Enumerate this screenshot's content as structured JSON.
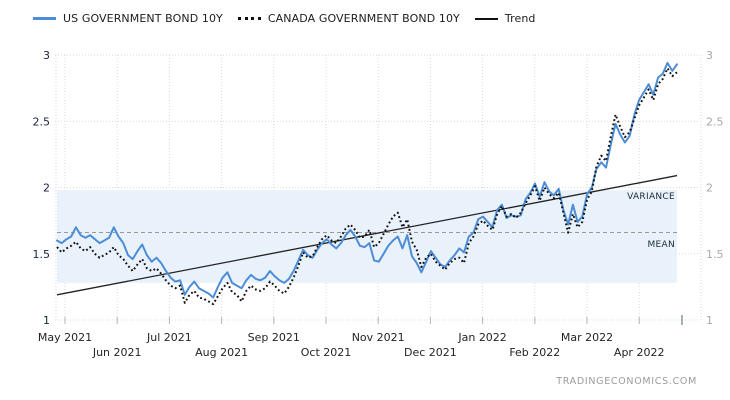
{
  "page": {
    "watermark": "TRADINGECONOMICS.COM"
  },
  "legend": {
    "items": [
      {
        "label": "US GOVERNMENT BOND 10Y",
        "swatch": "solid-line",
        "color": "#4c8dd6"
      },
      {
        "label": "CANADA GOVERNMENT BOND 10Y",
        "swatch": "dotted-line",
        "color": "#111111"
      },
      {
        "label": "Trend",
        "swatch": "solid-line",
        "color": "#111111"
      }
    ]
  },
  "chart_data": {
    "type": "line",
    "x_axis": {
      "months": [
        "May 2021",
        "Jun 2021",
        "Jul 2021",
        "Aug 2021",
        "Sep 2021",
        "Oct 2021",
        "Nov 2021",
        "Dec 2021",
        "Jan 2022",
        "Feb 2022",
        "Mar 2022",
        "Apr 2022"
      ]
    },
    "y_axis": {
      "ticks": [
        1,
        1.5,
        2,
        2.5,
        3
      ],
      "range": [
        1,
        3
      ],
      "left_label_color": "#16233c",
      "right_label_color": "#a8a8a8"
    },
    "grid": true,
    "legend_position": "top",
    "series": [
      {
        "name": "US GOVERNMENT BOND 10Y",
        "style": "solid",
        "color": "#4c8dd6",
        "values": [
          1.6,
          1.58,
          1.61,
          1.63,
          1.7,
          1.64,
          1.62,
          1.64,
          1.61,
          1.58,
          1.6,
          1.62,
          1.7,
          1.63,
          1.58,
          1.49,
          1.46,
          1.52,
          1.57,
          1.49,
          1.44,
          1.47,
          1.43,
          1.37,
          1.32,
          1.29,
          1.3,
          1.19,
          1.25,
          1.29,
          1.24,
          1.22,
          1.2,
          1.17,
          1.25,
          1.32,
          1.36,
          1.28,
          1.26,
          1.24,
          1.3,
          1.34,
          1.31,
          1.3,
          1.32,
          1.37,
          1.33,
          1.3,
          1.28,
          1.31,
          1.37,
          1.45,
          1.53,
          1.49,
          1.47,
          1.53,
          1.58,
          1.61,
          1.57,
          1.54,
          1.58,
          1.64,
          1.68,
          1.63,
          1.56,
          1.55,
          1.58,
          1.45,
          1.44,
          1.5,
          1.56,
          1.6,
          1.63,
          1.54,
          1.64,
          1.48,
          1.43,
          1.36,
          1.44,
          1.52,
          1.47,
          1.42,
          1.4,
          1.45,
          1.49,
          1.54,
          1.51,
          1.63,
          1.66,
          1.76,
          1.78,
          1.74,
          1.7,
          1.83,
          1.87,
          1.77,
          1.79,
          1.78,
          1.79,
          1.91,
          1.96,
          2.03,
          1.93,
          2.04,
          1.97,
          1.94,
          1.99,
          1.83,
          1.72,
          1.87,
          1.74,
          1.78,
          1.95,
          2.0,
          2.14,
          2.19,
          2.15,
          2.32,
          2.48,
          2.4,
          2.34,
          2.39,
          2.55,
          2.66,
          2.72,
          2.78,
          2.7,
          2.83,
          2.86,
          2.94,
          2.88,
          2.93
        ]
      },
      {
        "name": "CANADA GOVERNMENT BOND 10Y",
        "style": "dotted",
        "color": "#111111",
        "values": [
          1.55,
          1.51,
          1.54,
          1.56,
          1.59,
          1.54,
          1.52,
          1.55,
          1.5,
          1.47,
          1.49,
          1.51,
          1.55,
          1.49,
          1.46,
          1.41,
          1.37,
          1.42,
          1.46,
          1.39,
          1.37,
          1.39,
          1.35,
          1.3,
          1.26,
          1.24,
          1.26,
          1.13,
          1.19,
          1.22,
          1.17,
          1.16,
          1.14,
          1.12,
          1.18,
          1.24,
          1.28,
          1.21,
          1.19,
          1.14,
          1.22,
          1.26,
          1.23,
          1.22,
          1.24,
          1.29,
          1.26,
          1.22,
          1.2,
          1.25,
          1.32,
          1.41,
          1.51,
          1.47,
          1.48,
          1.55,
          1.61,
          1.64,
          1.6,
          1.58,
          1.63,
          1.69,
          1.72,
          1.68,
          1.62,
          1.63,
          1.68,
          1.55,
          1.58,
          1.65,
          1.72,
          1.78,
          1.81,
          1.7,
          1.76,
          1.59,
          1.53,
          1.4,
          1.47,
          1.5,
          1.44,
          1.41,
          1.38,
          1.43,
          1.46,
          1.47,
          1.43,
          1.58,
          1.63,
          1.72,
          1.75,
          1.71,
          1.68,
          1.8,
          1.86,
          1.78,
          1.8,
          1.77,
          1.81,
          1.88,
          1.94,
          2.01,
          1.9,
          2.0,
          1.95,
          1.92,
          1.96,
          1.81,
          1.66,
          1.8,
          1.7,
          1.74,
          1.91,
          1.97,
          2.16,
          2.24,
          2.2,
          2.38,
          2.55,
          2.46,
          2.38,
          2.42,
          2.52,
          2.62,
          2.68,
          2.74,
          2.66,
          2.78,
          2.82,
          2.9,
          2.84,
          2.87
        ]
      }
    ],
    "trend": {
      "label": "Trend",
      "start_value": 1.19,
      "end_value": 2.09,
      "color": "#222222"
    },
    "overlays": {
      "mean": {
        "label": "MEAN",
        "value": 1.66,
        "line_color": "#999999"
      },
      "variance": {
        "label": "VARIANCE",
        "upper": 1.98,
        "lower": 1.28,
        "fill": "#e9f2fb"
      }
    }
  }
}
